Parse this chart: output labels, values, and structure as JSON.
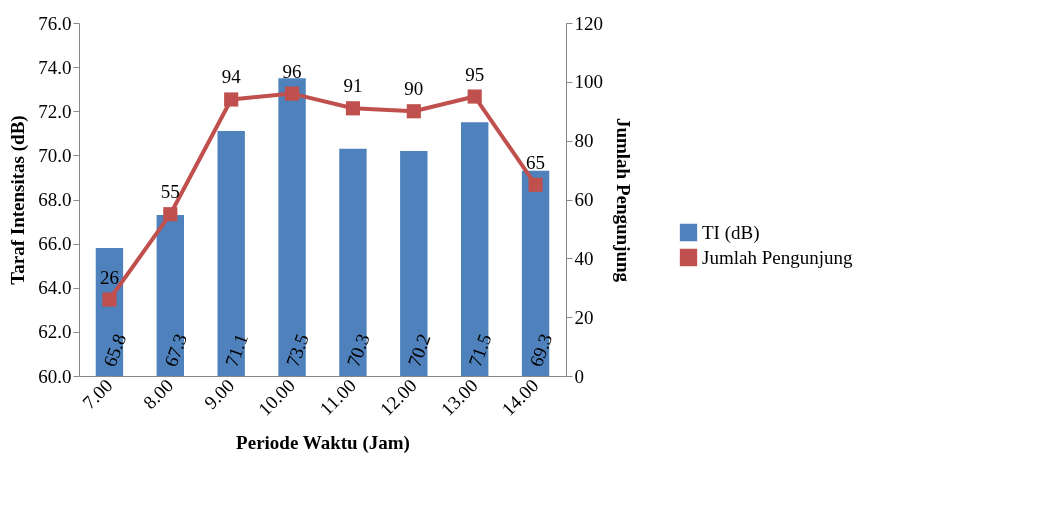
{
  "chart_data": {
    "type": "bar",
    "xlabel": "Periode Waktu (Jam)",
    "ylabel": "Taraf Intensitas (dB)",
    "y2label": "Jumlah Pengunjung",
    "categories": [
      "7.00",
      "8.00",
      "9.00",
      "10.00",
      "11.00",
      "12.00",
      "13.00",
      "14.00"
    ],
    "series": [
      {
        "name": "TI (dB)",
        "color": "#4f81bd",
        "values": [
          65.8,
          67.3,
          71.1,
          73.5,
          70.3,
          70.2,
          71.5,
          69.3
        ]
      },
      {
        "name": "Jumlah Pengunjung",
        "type": "line",
        "axis": "y2",
        "color": "#c0504d",
        "values": [
          26,
          55,
          94,
          96,
          91,
          90,
          95,
          65
        ]
      }
    ],
    "ylim": [
      60,
      76
    ],
    "yticks": [
      {
        "value": 60,
        "label": "60.0"
      },
      {
        "value": 62,
        "label": "62.0"
      },
      {
        "value": 64,
        "label": "64.0"
      },
      {
        "value": 66,
        "label": "66.0"
      },
      {
        "value": 68,
        "label": "68.0"
      },
      {
        "value": 70,
        "label": "70.0"
      },
      {
        "value": 72,
        "label": "72.0"
      },
      {
        "value": 74,
        "label": "74.0"
      },
      {
        "value": 76,
        "label": "76.0"
      }
    ],
    "y2lim": [
      0,
      120
    ],
    "y2ticks": [
      0,
      20,
      40,
      60,
      80,
      100,
      120
    ],
    "data_labels": true,
    "legend": "right",
    "marker": "square"
  }
}
